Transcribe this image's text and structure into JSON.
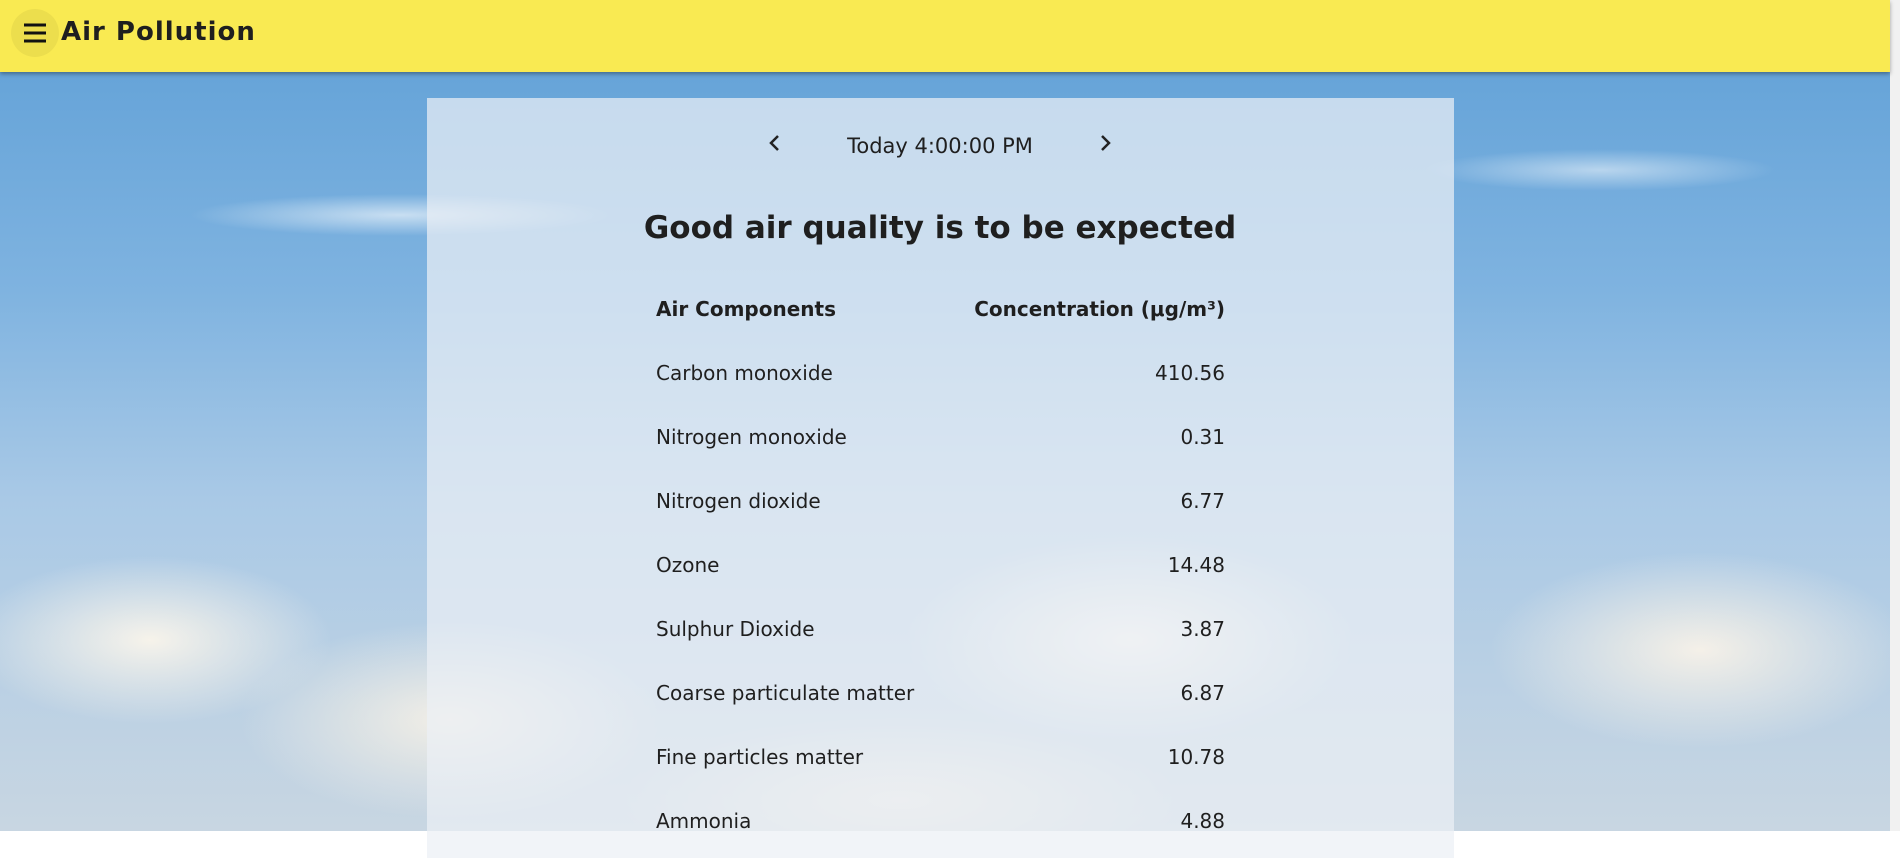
{
  "header": {
    "title": "Air Pollution"
  },
  "nav": {
    "time": "Today 4:00:00 PM"
  },
  "heading": "Good air quality is to be expected",
  "table": {
    "columns": [
      "Air Components",
      "Concentration (μg/m³)"
    ],
    "rows": [
      [
        "Carbon monoxide",
        410.56
      ],
      [
        "Nitrogen monoxide",
        0.31
      ],
      [
        "Nitrogen dioxide",
        6.77
      ],
      [
        "Ozone",
        14.48
      ],
      [
        "Sulphur Dioxide",
        3.87
      ],
      [
        "Coarse particulate matter",
        6.87
      ],
      [
        "Fine particles matter",
        10.78
      ],
      [
        "Ammonia",
        4.88
      ]
    ]
  }
}
